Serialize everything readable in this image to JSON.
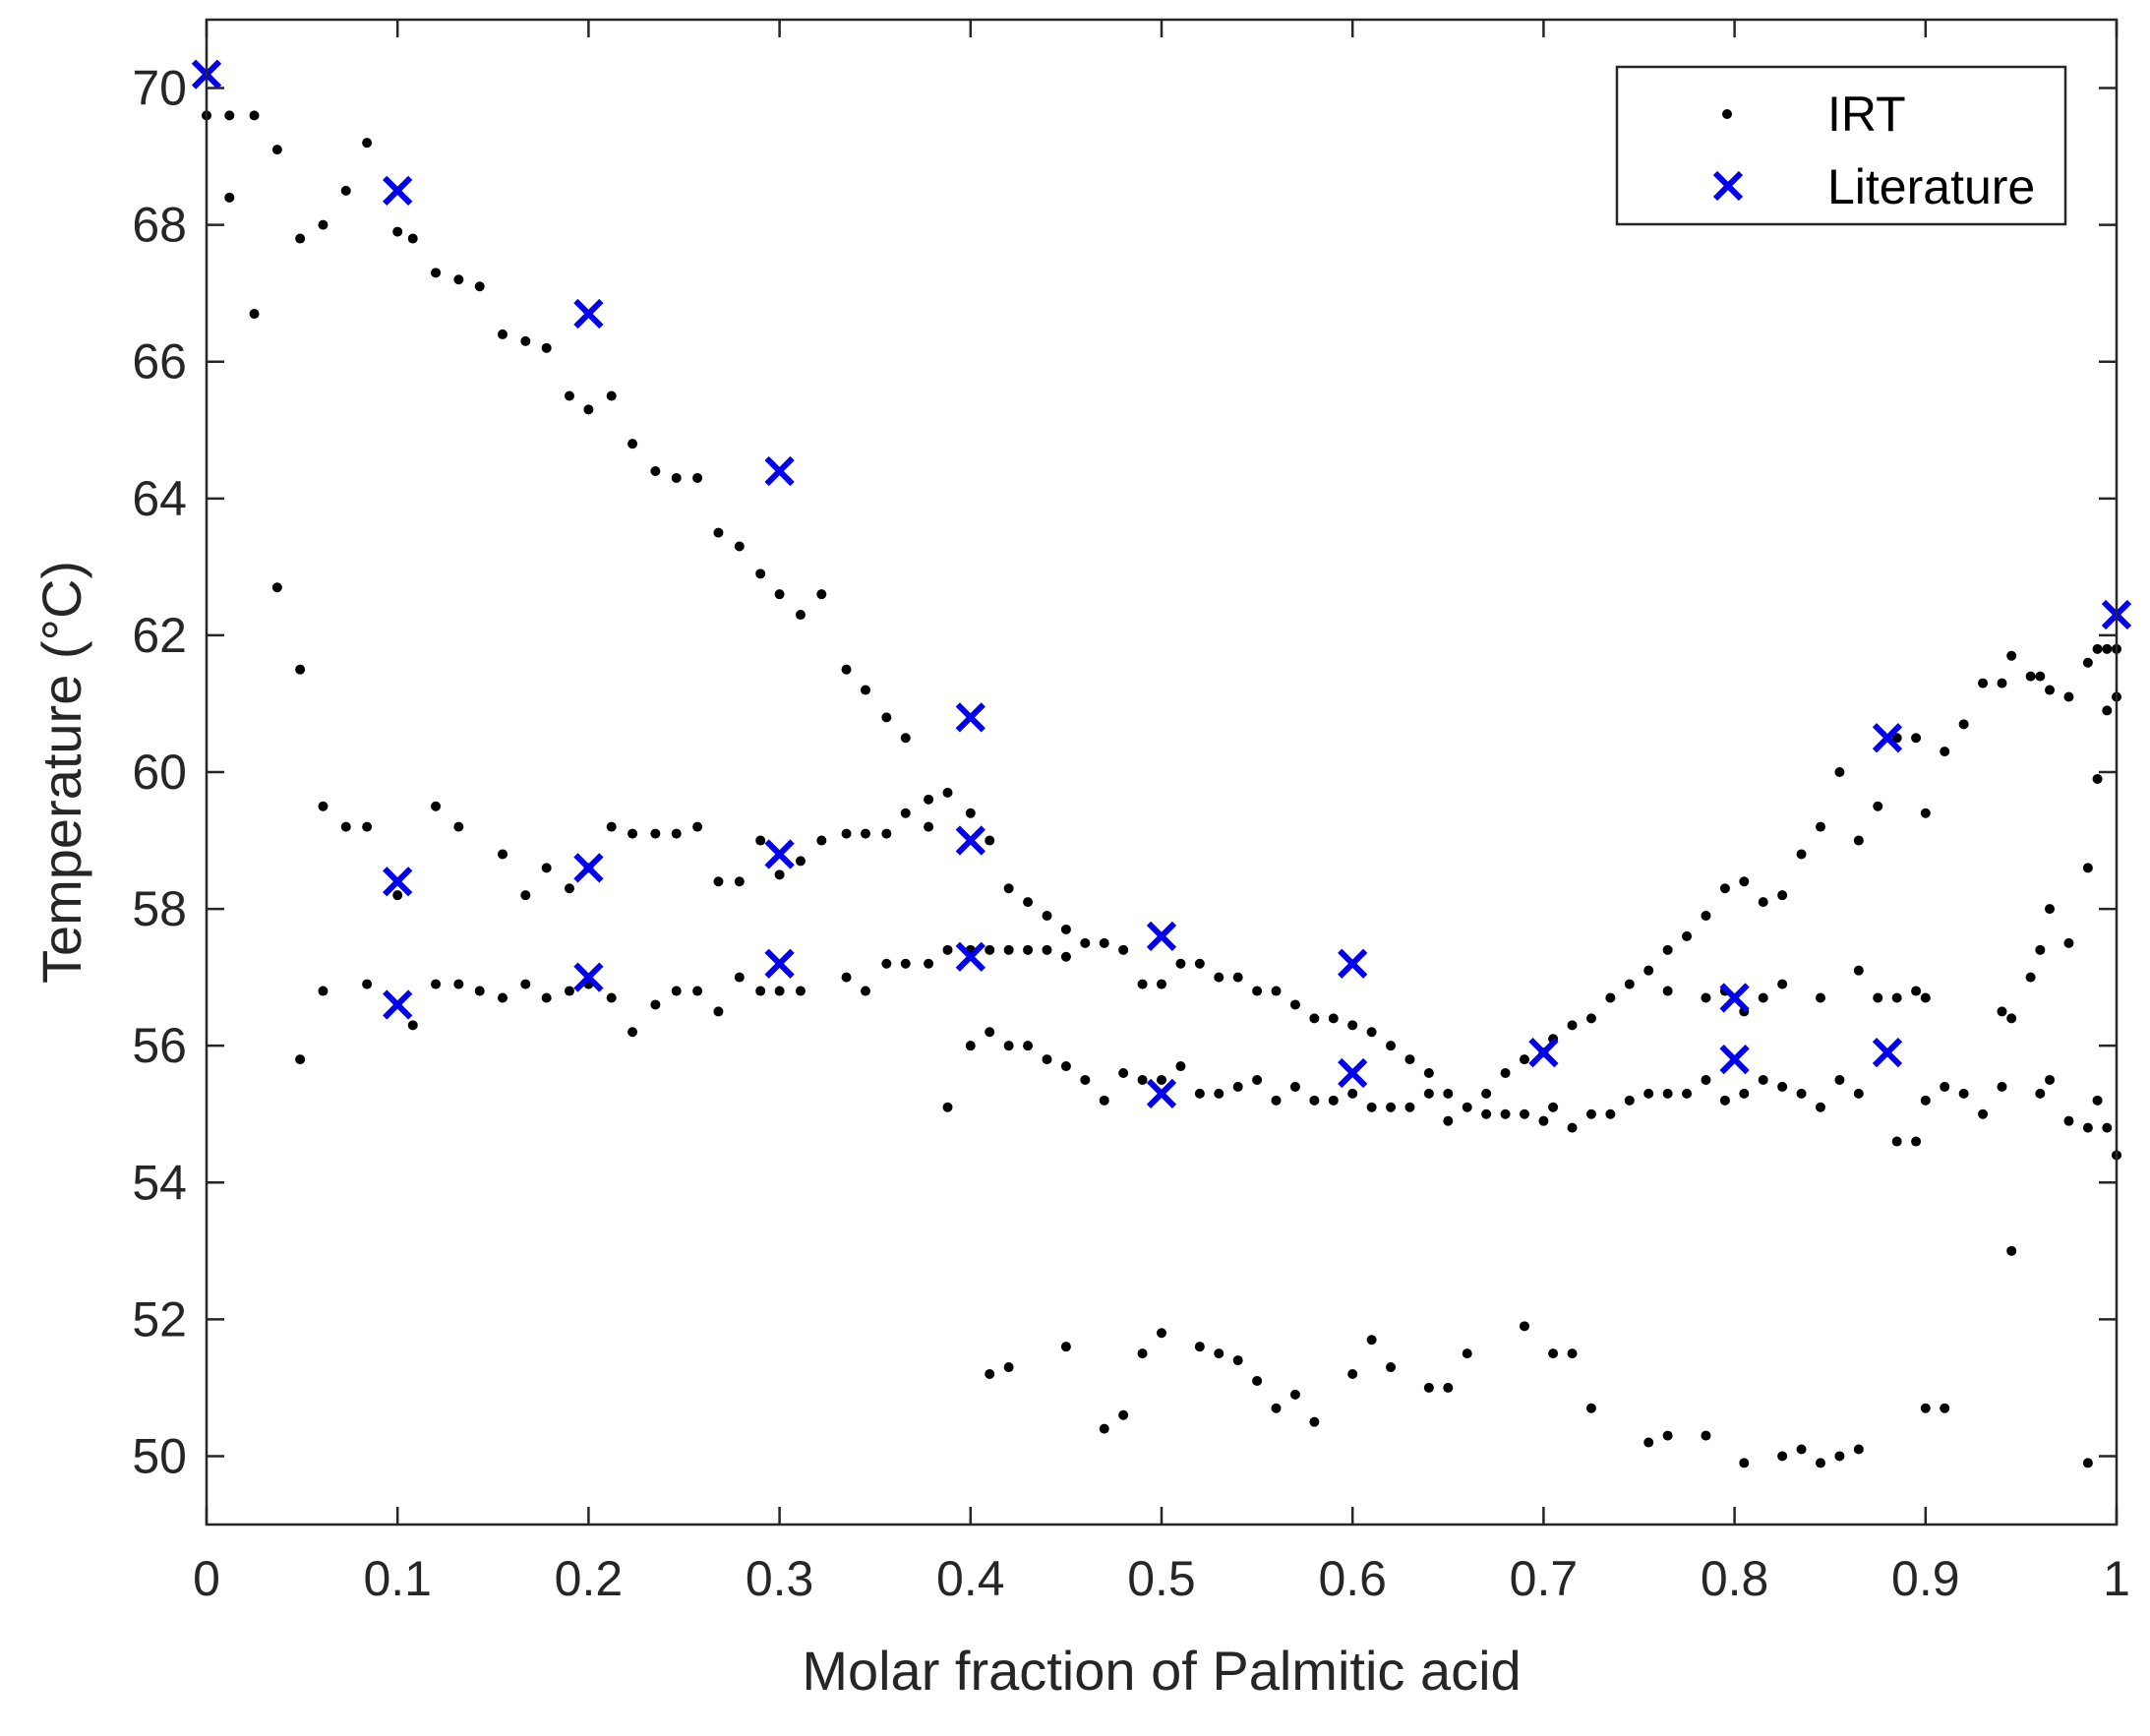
{
  "chart_data": {
    "type": "scatter",
    "title": "",
    "xlabel": "Molar fraction of Palmitic acid",
    "ylabel": "Temperature (°C)",
    "xlim": [
      0,
      1
    ],
    "ylim": [
      49,
      71
    ],
    "x_ticks": [
      0,
      0.1,
      0.2,
      0.3,
      0.4,
      0.5,
      0.6,
      0.7,
      0.8,
      0.9,
      1
    ],
    "x_tick_labels": [
      "0",
      "0.1",
      "0.2",
      "0.3",
      "0.4",
      "0.5",
      "0.6",
      "0.7",
      "0.8",
      "0.9",
      "1"
    ],
    "y_ticks": [
      50,
      52,
      54,
      56,
      58,
      60,
      62,
      64,
      66,
      68,
      70
    ],
    "y_tick_labels": [
      "50",
      "52",
      "54",
      "56",
      "58",
      "60",
      "62",
      "64",
      "66",
      "68",
      "70"
    ],
    "grid": false,
    "legend_position": "top-right",
    "series": [
      {
        "name": "IRT",
        "marker": "dot",
        "color": "#000000",
        "points": [
          [
            0.0,
            69.6
          ],
          [
            0.012,
            68.4
          ],
          [
            0.012,
            69.6
          ],
          [
            0.025,
            69.6
          ],
          [
            0.025,
            66.7
          ],
          [
            0.037,
            69.1
          ],
          [
            0.037,
            62.7
          ],
          [
            0.049,
            67.8
          ],
          [
            0.049,
            61.5
          ],
          [
            0.049,
            55.8
          ],
          [
            0.061,
            68.0
          ],
          [
            0.061,
            59.5
          ],
          [
            0.061,
            56.8
          ],
          [
            0.073,
            68.5
          ],
          [
            0.073,
            59.2
          ],
          [
            0.084,
            69.2
          ],
          [
            0.084,
            59.2
          ],
          [
            0.084,
            56.9
          ],
          [
            0.1,
            58.2
          ],
          [
            0.1,
            67.9
          ],
          [
            0.108,
            67.8
          ],
          [
            0.108,
            56.3
          ],
          [
            0.12,
            67.3
          ],
          [
            0.12,
            59.5
          ],
          [
            0.12,
            56.9
          ],
          [
            0.132,
            67.2
          ],
          [
            0.132,
            59.2
          ],
          [
            0.132,
            56.9
          ],
          [
            0.143,
            67.1
          ],
          [
            0.143,
            56.8
          ],
          [
            0.155,
            66.4
          ],
          [
            0.155,
            58.8
          ],
          [
            0.155,
            56.7
          ],
          [
            0.167,
            66.3
          ],
          [
            0.167,
            58.2
          ],
          [
            0.167,
            56.9
          ],
          [
            0.178,
            66.2
          ],
          [
            0.178,
            58.6
          ],
          [
            0.178,
            56.7
          ],
          [
            0.19,
            65.5
          ],
          [
            0.19,
            58.3
          ],
          [
            0.19,
            56.8
          ],
          [
            0.2,
            65.3
          ],
          [
            0.2,
            58.6
          ],
          [
            0.2,
            56.9
          ],
          [
            0.212,
            65.5
          ],
          [
            0.212,
            59.2
          ],
          [
            0.212,
            56.7
          ],
          [
            0.223,
            64.8
          ],
          [
            0.223,
            59.1
          ],
          [
            0.223,
            56.2
          ],
          [
            0.235,
            64.4
          ],
          [
            0.235,
            59.1
          ],
          [
            0.235,
            56.6
          ],
          [
            0.246,
            64.3
          ],
          [
            0.246,
            59.1
          ],
          [
            0.246,
            56.8
          ],
          [
            0.257,
            64.3
          ],
          [
            0.257,
            59.2
          ],
          [
            0.257,
            56.8
          ],
          [
            0.268,
            63.5
          ],
          [
            0.268,
            58.4
          ],
          [
            0.268,
            56.5
          ],
          [
            0.279,
            63.3
          ],
          [
            0.279,
            58.4
          ],
          [
            0.279,
            57.0
          ],
          [
            0.29,
            62.9
          ],
          [
            0.29,
            59.0
          ],
          [
            0.29,
            56.8
          ],
          [
            0.3,
            62.6
          ],
          [
            0.3,
            58.5
          ],
          [
            0.3,
            56.8
          ],
          [
            0.311,
            62.3
          ],
          [
            0.311,
            58.7
          ],
          [
            0.311,
            56.8
          ],
          [
            0.322,
            62.6
          ],
          [
            0.322,
            59.0
          ],
          [
            0.335,
            61.5
          ],
          [
            0.335,
            59.1
          ],
          [
            0.335,
            57.0
          ],
          [
            0.345,
            61.2
          ],
          [
            0.345,
            59.1
          ],
          [
            0.345,
            56.8
          ],
          [
            0.356,
            60.8
          ],
          [
            0.356,
            59.1
          ],
          [
            0.356,
            57.2
          ],
          [
            0.366,
            60.5
          ],
          [
            0.366,
            59.4
          ],
          [
            0.366,
            57.2
          ],
          [
            0.378,
            59.6
          ],
          [
            0.378,
            59.2
          ],
          [
            0.378,
            57.2
          ],
          [
            0.388,
            59.7
          ],
          [
            0.388,
            57.4
          ],
          [
            0.388,
            55.1
          ],
          [
            0.4,
            59.4
          ],
          [
            0.4,
            57.4
          ],
          [
            0.4,
            56.0
          ],
          [
            0.41,
            59.0
          ],
          [
            0.41,
            57.4
          ],
          [
            0.41,
            56.2
          ],
          [
            0.41,
            51.2
          ],
          [
            0.42,
            58.3
          ],
          [
            0.42,
            57.4
          ],
          [
            0.42,
            56.0
          ],
          [
            0.42,
            51.3
          ],
          [
            0.43,
            58.1
          ],
          [
            0.43,
            57.4
          ],
          [
            0.43,
            56.0
          ],
          [
            0.44,
            57.9
          ],
          [
            0.44,
            57.4
          ],
          [
            0.44,
            55.8
          ],
          [
            0.45,
            57.7
          ],
          [
            0.45,
            57.3
          ],
          [
            0.45,
            55.7
          ],
          [
            0.45,
            51.6
          ],
          [
            0.46,
            57.5
          ],
          [
            0.46,
            55.5
          ],
          [
            0.47,
            57.5
          ],
          [
            0.47,
            55.2
          ],
          [
            0.47,
            50.4
          ],
          [
            0.48,
            57.4
          ],
          [
            0.48,
            55.6
          ],
          [
            0.48,
            50.6
          ],
          [
            0.49,
            56.9
          ],
          [
            0.49,
            55.5
          ],
          [
            0.49,
            51.5
          ],
          [
            0.5,
            56.9
          ],
          [
            0.5,
            55.5
          ],
          [
            0.5,
            51.8
          ],
          [
            0.51,
            57.2
          ],
          [
            0.51,
            55.7
          ],
          [
            0.52,
            57.2
          ],
          [
            0.52,
            55.3
          ],
          [
            0.52,
            51.6
          ],
          [
            0.53,
            57.0
          ],
          [
            0.53,
            55.3
          ],
          [
            0.53,
            51.5
          ],
          [
            0.54,
            57.0
          ],
          [
            0.54,
            55.4
          ],
          [
            0.54,
            51.4
          ],
          [
            0.55,
            56.8
          ],
          [
            0.55,
            55.5
          ],
          [
            0.55,
            51.1
          ],
          [
            0.56,
            56.8
          ],
          [
            0.56,
            55.2
          ],
          [
            0.56,
            50.7
          ],
          [
            0.57,
            56.6
          ],
          [
            0.57,
            55.4
          ],
          [
            0.57,
            50.9
          ],
          [
            0.58,
            56.4
          ],
          [
            0.58,
            55.2
          ],
          [
            0.58,
            50.5
          ],
          [
            0.59,
            56.4
          ],
          [
            0.59,
            55.2
          ],
          [
            0.6,
            56.3
          ],
          [
            0.6,
            55.3
          ],
          [
            0.6,
            51.2
          ],
          [
            0.61,
            56.2
          ],
          [
            0.61,
            55.1
          ],
          [
            0.61,
            51.7
          ],
          [
            0.62,
            56.0
          ],
          [
            0.62,
            55.1
          ],
          [
            0.62,
            51.3
          ],
          [
            0.63,
            55.8
          ],
          [
            0.63,
            55.1
          ],
          [
            0.64,
            55.6
          ],
          [
            0.64,
            55.3
          ],
          [
            0.64,
            51.0
          ],
          [
            0.65,
            55.3
          ],
          [
            0.65,
            54.9
          ],
          [
            0.65,
            51.0
          ],
          [
            0.66,
            55.1
          ],
          [
            0.66,
            51.5
          ],
          [
            0.67,
            55.3
          ],
          [
            0.67,
            55.0
          ],
          [
            0.68,
            55.6
          ],
          [
            0.68,
            55.0
          ],
          [
            0.69,
            55.8
          ],
          [
            0.69,
            55.0
          ],
          [
            0.69,
            51.9
          ],
          [
            0.7,
            55.9
          ],
          [
            0.7,
            54.9
          ],
          [
            0.705,
            56.1
          ],
          [
            0.705,
            55.1
          ],
          [
            0.705,
            51.5
          ],
          [
            0.715,
            56.3
          ],
          [
            0.715,
            54.8
          ],
          [
            0.715,
            51.5
          ],
          [
            0.725,
            56.4
          ],
          [
            0.725,
            55.0
          ],
          [
            0.725,
            50.7
          ],
          [
            0.735,
            56.7
          ],
          [
            0.735,
            55.0
          ],
          [
            0.745,
            56.9
          ],
          [
            0.745,
            55.2
          ],
          [
            0.755,
            57.1
          ],
          [
            0.755,
            55.3
          ],
          [
            0.755,
            50.2
          ],
          [
            0.765,
            57.4
          ],
          [
            0.765,
            56.8
          ],
          [
            0.765,
            55.3
          ],
          [
            0.765,
            50.3
          ],
          [
            0.775,
            57.6
          ],
          [
            0.775,
            55.3
          ],
          [
            0.785,
            57.9
          ],
          [
            0.785,
            56.7
          ],
          [
            0.785,
            55.5
          ],
          [
            0.785,
            50.3
          ],
          [
            0.795,
            58.3
          ],
          [
            0.795,
            56.8
          ],
          [
            0.795,
            55.2
          ],
          [
            0.805,
            58.4
          ],
          [
            0.805,
            56.5
          ],
          [
            0.805,
            55.3
          ],
          [
            0.805,
            49.9
          ],
          [
            0.815,
            58.1
          ],
          [
            0.815,
            56.7
          ],
          [
            0.815,
            55.5
          ],
          [
            0.825,
            58.2
          ],
          [
            0.825,
            56.9
          ],
          [
            0.825,
            55.4
          ],
          [
            0.825,
            50.0
          ],
          [
            0.835,
            58.8
          ],
          [
            0.835,
            55.3
          ],
          [
            0.835,
            50.1
          ],
          [
            0.845,
            59.2
          ],
          [
            0.845,
            56.7
          ],
          [
            0.845,
            55.1
          ],
          [
            0.845,
            49.9
          ],
          [
            0.855,
            60.0
          ],
          [
            0.855,
            55.5
          ],
          [
            0.855,
            50.0
          ],
          [
            0.865,
            59.0
          ],
          [
            0.865,
            57.1
          ],
          [
            0.865,
            55.3
          ],
          [
            0.865,
            50.1
          ],
          [
            0.875,
            59.5
          ],
          [
            0.875,
            56.7
          ],
          [
            0.885,
            60.5
          ],
          [
            0.885,
            56.7
          ],
          [
            0.885,
            54.6
          ],
          [
            0.895,
            60.5
          ],
          [
            0.895,
            56.8
          ],
          [
            0.895,
            54.6
          ],
          [
            0.9,
            59.4
          ],
          [
            0.9,
            56.7
          ],
          [
            0.9,
            55.2
          ],
          [
            0.9,
            50.7
          ],
          [
            0.91,
            60.3
          ],
          [
            0.91,
            55.4
          ],
          [
            0.91,
            50.7
          ],
          [
            0.92,
            60.7
          ],
          [
            0.92,
            55.3
          ],
          [
            0.93,
            61.3
          ],
          [
            0.93,
            55.0
          ],
          [
            0.94,
            61.3
          ],
          [
            0.94,
            56.5
          ],
          [
            0.94,
            55.4
          ],
          [
            0.945,
            61.7
          ],
          [
            0.945,
            56.4
          ],
          [
            0.945,
            53.0
          ],
          [
            0.955,
            61.4
          ],
          [
            0.955,
            57.0
          ],
          [
            0.96,
            61.4
          ],
          [
            0.96,
            57.4
          ],
          [
            0.96,
            55.3
          ],
          [
            0.965,
            61.2
          ],
          [
            0.965,
            58.0
          ],
          [
            0.965,
            55.5
          ],
          [
            0.975,
            61.1
          ],
          [
            0.975,
            57.5
          ],
          [
            0.975,
            54.9
          ],
          [
            0.985,
            61.6
          ],
          [
            0.985,
            58.6
          ],
          [
            0.985,
            54.8
          ],
          [
            0.985,
            49.9
          ],
          [
            0.99,
            61.8
          ],
          [
            0.99,
            59.9
          ],
          [
            0.99,
            55.2
          ],
          [
            0.995,
            61.8
          ],
          [
            0.995,
            60.9
          ],
          [
            0.995,
            54.8
          ],
          [
            1.0,
            61.1
          ],
          [
            1.0,
            61.8
          ],
          [
            1.0,
            54.4
          ]
        ]
      },
      {
        "name": "Literature",
        "marker": "x",
        "color": "#0000ee",
        "points": [
          [
            0.0,
            70.2
          ],
          [
            0.1,
            68.5
          ],
          [
            0.1,
            58.4
          ],
          [
            0.1,
            56.6
          ],
          [
            0.2,
            66.7
          ],
          [
            0.2,
            58.6
          ],
          [
            0.2,
            57.0
          ],
          [
            0.3,
            64.4
          ],
          [
            0.3,
            58.8
          ],
          [
            0.3,
            57.2
          ],
          [
            0.4,
            60.8
          ],
          [
            0.4,
            59.0
          ],
          [
            0.4,
            57.3
          ],
          [
            0.5,
            57.6
          ],
          [
            0.5,
            55.3
          ],
          [
            0.6,
            57.2
          ],
          [
            0.6,
            55.6
          ],
          [
            0.7,
            55.9
          ],
          [
            0.8,
            56.7
          ],
          [
            0.8,
            55.8
          ],
          [
            0.88,
            60.5
          ],
          [
            0.88,
            55.9
          ],
          [
            1.0,
            62.3
          ]
        ]
      }
    ]
  }
}
